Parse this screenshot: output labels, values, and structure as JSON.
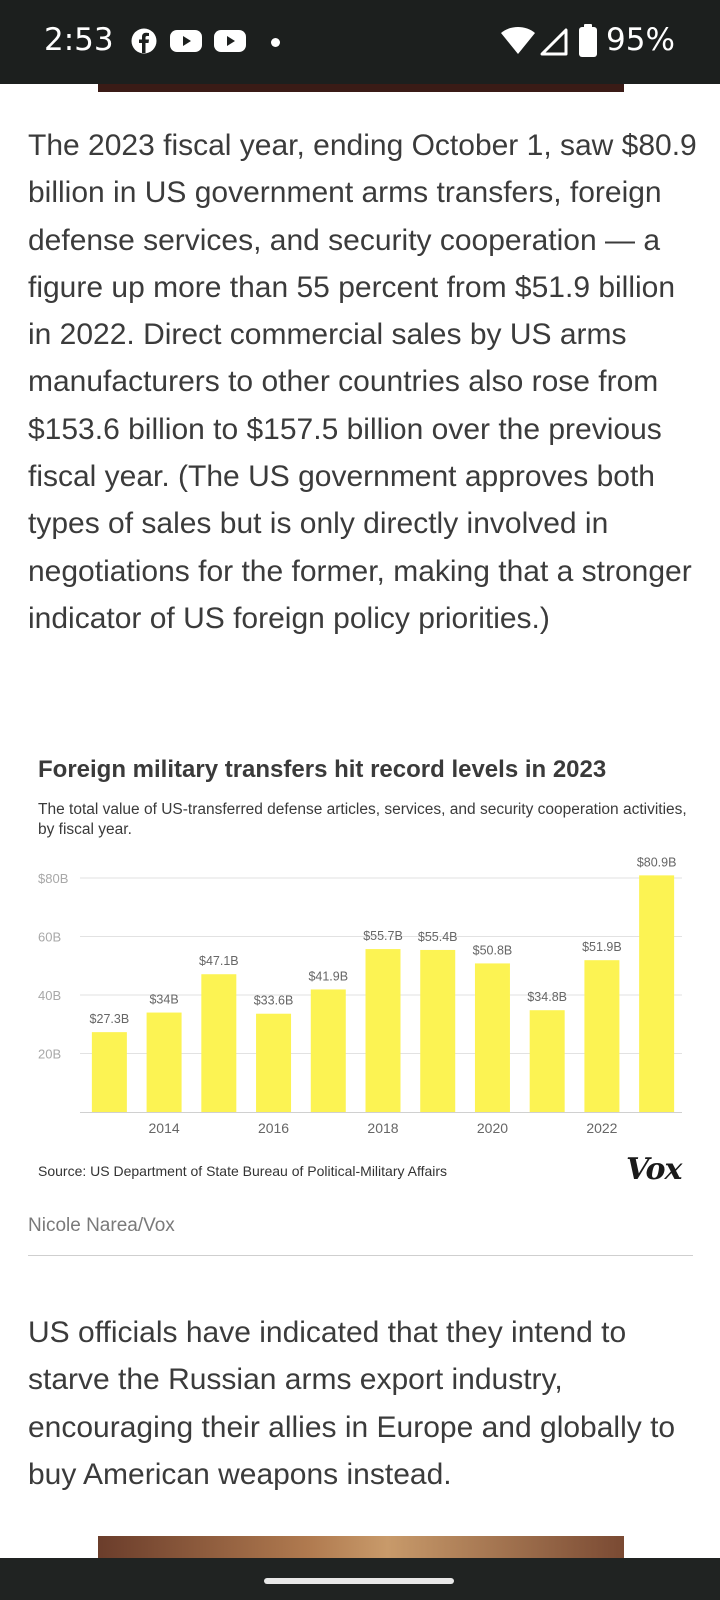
{
  "status_bar": {
    "time": "2:53",
    "notification_icons": [
      "facebook-icon",
      "youtube-icon",
      "youtube-icon"
    ],
    "battery": "95%"
  },
  "article": {
    "paragraph1": "The 2023 fiscal year, ending October 1, saw $80.9 billion in US government arms transfers, foreign defense services, and security cooperation — a figure up more than 55 percent from $51.9 billion in 2022. Direct commercial sales by US arms manufacturers to other countries also rose from $153.6 billion to $157.5 billion over the previous fiscal year. (The US government approves both types of sales but is only directly involved in negotiations for the former, making that a stronger indicator of US foreign policy priorities.)",
    "paragraph2": "US officials have indicated that they intend to starve the Russian arms export industry, encouraging their allies in Europe and globally to buy American weapons instead.",
    "credit": "Nicole Narea/Vox"
  },
  "chart_data": {
    "type": "bar",
    "title": "Foreign military transfers hit record levels in 2023",
    "subtitle": "The total value of US-transferred defense articles, services, and security cooperation activities, by fiscal year.",
    "categories": [
      2013,
      2014,
      2015,
      2016,
      2017,
      2018,
      2019,
      2020,
      2021,
      2022,
      2023
    ],
    "values": [
      27.3,
      34,
      47.1,
      33.6,
      41.9,
      55.7,
      55.4,
      50.8,
      34.8,
      51.9,
      80.9
    ],
    "value_labels": [
      "$27.3B",
      "$34B",
      "$47.1B",
      "$33.6B",
      "$41.9B",
      "$55.7B",
      "$55.4B",
      "$50.8B",
      "$34.8B",
      "$51.9B",
      "$80.9B"
    ],
    "x_tick_labels": [
      "",
      "2014",
      "",
      "2016",
      "",
      "2018",
      "",
      "2020",
      "",
      "2022",
      ""
    ],
    "y_ticks": [
      20,
      40,
      60,
      80
    ],
    "y_tick_labels": [
      "20B",
      "40B",
      "60B",
      "$80B"
    ],
    "ylim": [
      0,
      80
    ],
    "grid": true,
    "bar_color": "#fcf353",
    "source": "Source: US Department of State Bureau of Political-Military Affairs",
    "logo": "Vox"
  }
}
